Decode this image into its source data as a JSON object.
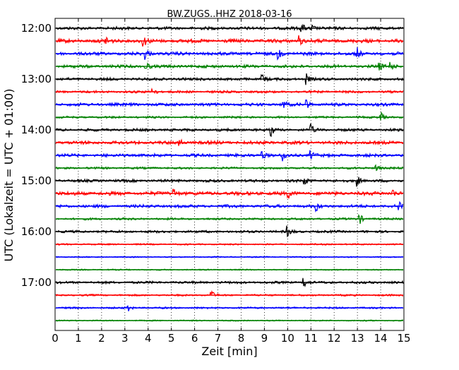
{
  "chart_data": {
    "type": "line",
    "title": "BW.ZUGS..HHZ 2018-03-16",
    "xlabel": "Zeit  [min]",
    "ylabel": "UTC (Lokalzeit = UTC + 01:00)",
    "xlim": [
      0,
      15
    ],
    "x_ticks": [
      0,
      1,
      2,
      3,
      4,
      5,
      6,
      7,
      8,
      9,
      10,
      11,
      12,
      13,
      14,
      15
    ],
    "x_tick_labels": [
      "0",
      "1",
      "2",
      "3",
      "4",
      "5",
      "6",
      "7",
      "8",
      "9",
      "10",
      "11",
      "12",
      "13",
      "14",
      "15"
    ],
    "y_tick_labels": [
      {
        "row": 0,
        "label": "12:00"
      },
      {
        "row": 4,
        "label": "13:00"
      },
      {
        "row": 8,
        "label": "14:00"
      },
      {
        "row": 12,
        "label": "15:00"
      },
      {
        "row": 16,
        "label": "16:00"
      },
      {
        "row": 20,
        "label": "17:00"
      }
    ],
    "grid": {
      "x": true,
      "y": false,
      "style": "dotted"
    },
    "color_cycle": [
      "#000000",
      "#ff0000",
      "#0000ff",
      "#008000"
    ],
    "traces": [
      {
        "start": "12:00",
        "amplitude": 1.0,
        "events": [
          10.6,
          11.0
        ]
      },
      {
        "start": "12:15",
        "amplitude": 1.2,
        "events": [
          2.2,
          3.8,
          10.5
        ]
      },
      {
        "start": "12:30",
        "amplitude": 1.1,
        "events": [
          3.9,
          9.6,
          13.0
        ]
      },
      {
        "start": "12:45",
        "amplitude": 1.0,
        "events": [
          3.9,
          13.9,
          14.4
        ]
      },
      {
        "start": "13:00",
        "amplitude": 0.9,
        "events": [
          8.9,
          10.8
        ]
      },
      {
        "start": "13:15",
        "amplitude": 0.8,
        "events": [
          4.2
        ]
      },
      {
        "start": "13:30",
        "amplitude": 1.0,
        "events": [
          9.8,
          10.8
        ]
      },
      {
        "start": "13:45",
        "amplitude": 0.7,
        "events": [
          14.0
        ]
      },
      {
        "start": "14:00",
        "amplitude": 0.9,
        "events": [
          9.3,
          11.0
        ]
      },
      {
        "start": "14:15",
        "amplitude": 1.1,
        "events": [
          5.3
        ]
      },
      {
        "start": "14:30",
        "amplitude": 1.0,
        "events": [
          8.9,
          9.8,
          11.0
        ]
      },
      {
        "start": "14:45",
        "amplitude": 0.7,
        "events": [
          13.8
        ]
      },
      {
        "start": "15:00",
        "amplitude": 0.9,
        "events": [
          10.7,
          13.0
        ]
      },
      {
        "start": "15:15",
        "amplitude": 1.2,
        "events": [
          5.1,
          10.0,
          14.5
        ]
      },
      {
        "start": "15:30",
        "amplitude": 1.0,
        "events": [
          11.2,
          14.8
        ]
      },
      {
        "start": "15:45",
        "amplitude": 0.7,
        "events": [
          13.1
        ]
      },
      {
        "start": "16:00",
        "amplitude": 0.8,
        "events": [
          10.0
        ]
      },
      {
        "start": "16:15",
        "amplitude": 0.5,
        "events": []
      },
      {
        "start": "16:30",
        "amplitude": 0.4,
        "events": []
      },
      {
        "start": "16:45",
        "amplitude": 0.4,
        "events": []
      },
      {
        "start": "17:00",
        "amplitude": 0.8,
        "events": [
          10.7
        ]
      },
      {
        "start": "17:15",
        "amplitude": 0.6,
        "events": [
          6.7
        ]
      },
      {
        "start": "17:30",
        "amplitude": 0.6,
        "events": [
          3.1
        ]
      },
      {
        "start": "17:45",
        "amplitude": 0.4,
        "events": []
      }
    ]
  }
}
